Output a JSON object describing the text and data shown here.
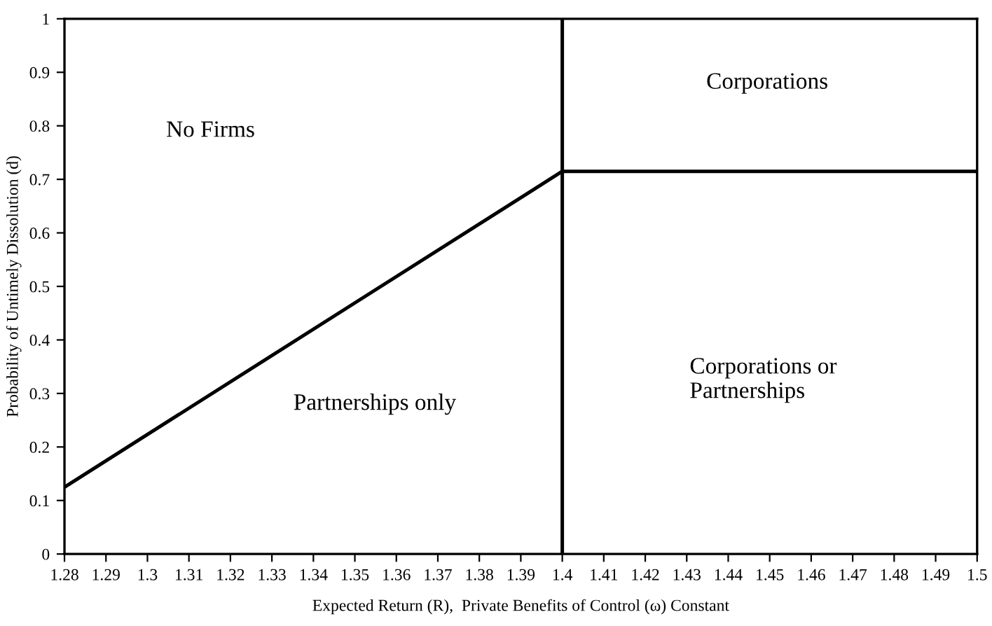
{
  "chart_data": {
    "type": "line",
    "xlabel": "Expected Return (R),  Private Benefits of Control (ω) Constant",
    "ylabel": "Probability of Untimely Dissolution (d)",
    "series": [
      {
        "color": "#000000",
        "x": [
          1.28,
          1.4,
          1.5
        ],
        "values": [
          0.125,
          0.715,
          0.715
        ]
      }
    ],
    "ref_lines": [
      {
        "axis": "x",
        "value": 1.4,
        "color": "#000000"
      }
    ],
    "annotations": [
      "No Firms",
      "Partnerships only",
      "Corporations",
      "Corporations or\nPartnerships"
    ],
    "xlim": [
      1.28,
      1.5
    ],
    "ylim": [
      0,
      1
    ],
    "xticks": [
      1.28,
      1.29,
      1.3,
      1.31,
      1.32,
      1.33,
      1.34,
      1.35,
      1.36,
      1.37,
      1.38,
      1.39,
      1.4,
      1.41,
      1.42,
      1.43,
      1.44,
      1.45,
      1.46,
      1.47,
      1.48,
      1.49,
      1.5
    ],
    "yticks": [
      0,
      0.1,
      0.2,
      0.3,
      0.4,
      0.5,
      0.6,
      0.7,
      0.8,
      0.9,
      1
    ],
    "grid": false,
    "legend": false,
    "marker": "none",
    "line_style": "solid"
  }
}
